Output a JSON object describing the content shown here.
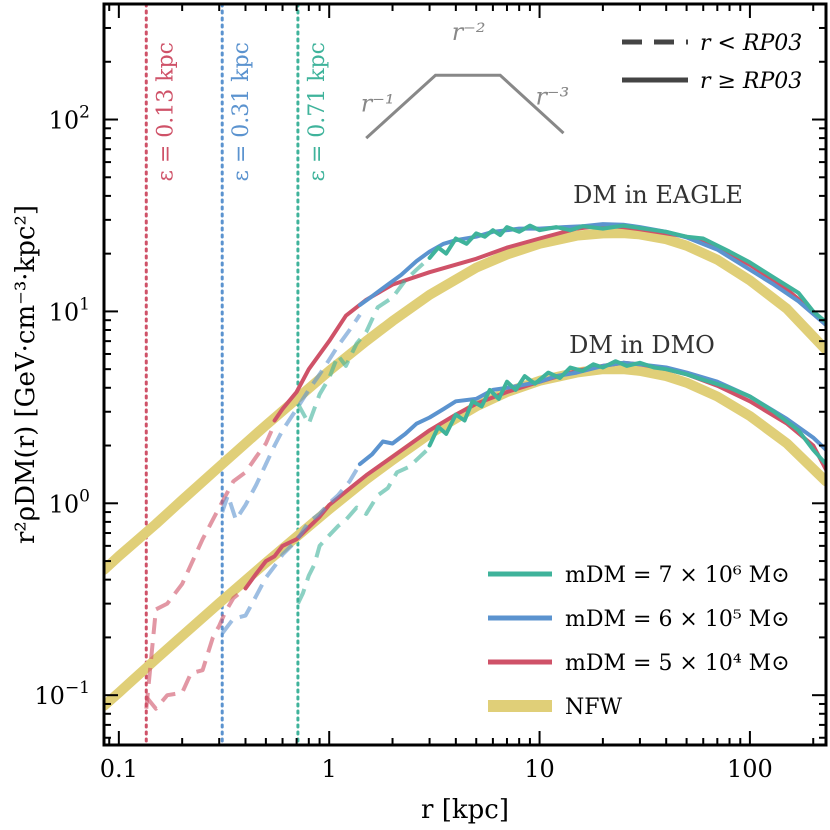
{
  "chart_data": {
    "type": "line",
    "x_scale": "log",
    "y_scale": "log",
    "xlim": [
      0.085,
      230
    ],
    "ylim": [
      0.055,
      400
    ],
    "xlabel": "r [kpc]",
    "ylabel": "r²ρDM(r) [GeV·cm⁻³·kpc²]",
    "x_ticks": [
      {
        "value": 0.1,
        "label": "0.1"
      },
      {
        "value": 1,
        "label": "1"
      },
      {
        "value": 10,
        "label": "10"
      },
      {
        "value": 100,
        "label": "100"
      }
    ],
    "y_ticks": [
      {
        "value": 0.1,
        "base": "10",
        "exp": "−1"
      },
      {
        "value": 1,
        "base": "10",
        "exp": "0"
      },
      {
        "value": 10,
        "base": "10",
        "exp": "1"
      },
      {
        "value": 100,
        "base": "10",
        "exp": "2"
      }
    ],
    "grid": false,
    "colors": {
      "green": "#3fb39b",
      "blue": "#5b93cf",
      "red": "#cf5268",
      "nfw": "#e0cf78",
      "gray": "#888888"
    },
    "annotations": {
      "eagle": "DM in EAGLE",
      "dmo": "DM in DMO"
    },
    "softening_lines": [
      {
        "x": 0.135,
        "label": "ε = 0.13 kpc",
        "color": "#cf5268"
      },
      {
        "x": 0.31,
        "label": "ε = 0.31 kpc",
        "color": "#5b93cf"
      },
      {
        "x": 0.71,
        "label": "ε = 0.71 kpc",
        "color": "#3fb39b"
      }
    ],
    "slope_guide": {
      "labels": [
        "r⁻¹",
        "r⁻²",
        "r⁻³"
      ],
      "points": [
        [
          1.5,
          80
        ],
        [
          3.2,
          170
        ],
        [
          6.5,
          170
        ],
        [
          13,
          85
        ]
      ]
    },
    "legend_style": {
      "position": "top-right",
      "entries": [
        {
          "label": "r < RP03",
          "style": "dashed"
        },
        {
          "label": "r ≥ RP03",
          "style": "solid"
        }
      ]
    },
    "legend": {
      "position": "lower-right",
      "entries": [
        {
          "label": "mDM = 7 × 10⁶ M⊙",
          "color": "#3fb39b",
          "width": 5
        },
        {
          "label": "mDM = 6 × 10⁵ M⊙",
          "color": "#5b93cf",
          "width": 5
        },
        {
          "label": "mDM = 5 × 10⁴ M⊙",
          "color": "#cf5268",
          "width": 5
        },
        {
          "label": "NFW",
          "color": "#e0cf78",
          "width": 12
        }
      ]
    },
    "series": [
      {
        "name": "NFW",
        "group": "EAGLE",
        "color": "#e0cf78",
        "width": 10,
        "style": "solid",
        "x": [
          0.085,
          0.1,
          0.15,
          0.2,
          0.3,
          0.5,
          0.7,
          1,
          1.5,
          2,
          3,
          5,
          7,
          10,
          15,
          20,
          25,
          30,
          40,
          50,
          70,
          100,
          150,
          230
        ],
        "y": [
          0.45,
          0.53,
          0.78,
          1.04,
          1.55,
          2.55,
          3.5,
          4.9,
          7.0,
          8.9,
          12.2,
          16.9,
          19.8,
          22.5,
          24.8,
          25.5,
          25.6,
          25.2,
          23.8,
          22.0,
          18.6,
          14.5,
          10.3,
          6.3
        ]
      },
      {
        "name": "NFW",
        "group": "DMO",
        "color": "#e0cf78",
        "width": 10,
        "style": "solid",
        "x": [
          0.085,
          0.1,
          0.15,
          0.2,
          0.3,
          0.5,
          0.7,
          1,
          1.5,
          2,
          3,
          5,
          7,
          10,
          15,
          20,
          25,
          30,
          40,
          50,
          70,
          100,
          150,
          230
        ],
        "y": [
          0.088,
          0.103,
          0.154,
          0.204,
          0.302,
          0.49,
          0.67,
          0.93,
          1.33,
          1.68,
          2.3,
          3.2,
          3.8,
          4.35,
          4.8,
          5.0,
          5.0,
          4.9,
          4.6,
          4.25,
          3.6,
          2.85,
          2.05,
          1.3
        ]
      },
      {
        "name": "mDM = 5 × 10⁴ M⊙",
        "group": "EAGLE",
        "color": "#cf5268",
        "width": 4,
        "style": "dashed",
        "alpha": 0.6,
        "x": [
          0.135,
          0.15,
          0.17,
          0.2,
          0.25,
          0.3,
          0.35,
          0.4,
          0.45,
          0.5,
          0.55
        ],
        "y": [
          0.085,
          0.28,
          0.3,
          0.38,
          0.65,
          0.95,
          1.3,
          1.45,
          1.75,
          2.05,
          2.6
        ]
      },
      {
        "name": "mDM = 5 × 10⁴ M⊙",
        "group": "EAGLE",
        "color": "#cf5268",
        "width": 4,
        "style": "solid",
        "x": [
          0.55,
          0.6,
          0.7,
          0.8,
          1,
          1.2,
          1.5,
          2,
          3,
          5,
          7,
          10,
          15,
          20,
          25,
          30,
          40,
          50,
          70,
          100,
          150,
          200,
          230
        ],
        "y": [
          2.7,
          3.1,
          3.8,
          5.0,
          7.0,
          9.5,
          11.5,
          13.8,
          16.0,
          18.8,
          21.5,
          24.0,
          27.0,
          28.0,
          27.5,
          26.8,
          25.5,
          24.5,
          21.5,
          17.5,
          13.0,
          10.0,
          8.5
        ]
      },
      {
        "name": "mDM = 6 × 10⁵ M⊙",
        "group": "EAGLE",
        "color": "#5b93cf",
        "width": 4,
        "style": "dashed",
        "alpha": 0.6,
        "x": [
          0.31,
          0.33,
          0.36,
          0.4,
          0.45,
          0.5,
          0.55,
          0.6,
          0.7,
          0.8,
          0.9,
          1,
          1.1,
          1.25,
          1.4
        ],
        "y": [
          0.9,
          1.1,
          0.82,
          0.98,
          1.25,
          1.6,
          2.0,
          2.4,
          3.1,
          3.9,
          4.7,
          5.6,
          6.6,
          8.0,
          9.6
        ]
      },
      {
        "name": "mDM = 6 × 10⁵ M⊙",
        "group": "EAGLE",
        "color": "#5b93cf",
        "width": 4,
        "style": "solid",
        "x": [
          1.4,
          1.6,
          1.9,
          2.2,
          2.6,
          3,
          3.5,
          4,
          5,
          6,
          7,
          8,
          10,
          13,
          16,
          20,
          25,
          30,
          40,
          50,
          70,
          100,
          130,
          170,
          230
        ],
        "y": [
          10.8,
          12.0,
          13.8,
          15.5,
          18.3,
          20.5,
          22.5,
          23.5,
          24.5,
          26.0,
          26.5,
          27.0,
          27.0,
          27.5,
          27.8,
          28.5,
          28.3,
          27.5,
          26.0,
          24.3,
          21.0,
          16.5,
          13.8,
          11.3,
          8.5
        ]
      },
      {
        "name": "mDM = 7 × 10⁶ M⊙",
        "group": "EAGLE",
        "color": "#3fb39b",
        "width": 4,
        "style": "dashed",
        "alpha": 0.6,
        "x": [
          0.71,
          0.8,
          0.9,
          1.0,
          1.1,
          1.2,
          1.35,
          1.5,
          1.7,
          2.0,
          2.3,
          2.6,
          3.0
        ],
        "y": [
          3.3,
          2.6,
          3.7,
          4.5,
          5.9,
          5.2,
          6.8,
          7.8,
          10.5,
          11.8,
          14.5,
          16.5,
          19.0
        ]
      },
      {
        "name": "mDM = 7 × 10⁶ M⊙",
        "group": "EAGLE",
        "color": "#3fb39b",
        "width": 4,
        "style": "solid",
        "x": [
          3.0,
          3.3,
          3.6,
          4.0,
          4.5,
          5,
          5.5,
          6,
          6.5,
          7,
          8,
          9,
          10,
          12,
          14,
          16,
          20,
          25,
          30,
          40,
          50,
          60,
          80,
          100,
          130,
          170,
          200,
          230
        ],
        "y": [
          19.0,
          21.5,
          20.0,
          24.0,
          22.5,
          25.5,
          24.5,
          26.5,
          25.0,
          27.5,
          26.0,
          28.0,
          26.5,
          27.5,
          26.5,
          27.8,
          27.0,
          28.0,
          27.2,
          26.0,
          24.5,
          24.0,
          20.5,
          18.0,
          15.0,
          12.5,
          10.0,
          8.8
        ]
      },
      {
        "name": "mDM = 5 × 10⁴ M⊙",
        "group": "DMO",
        "color": "#cf5268",
        "width": 4,
        "style": "dashed",
        "alpha": 0.6,
        "x": [
          0.135,
          0.15,
          0.17,
          0.2,
          0.22,
          0.25,
          0.28,
          0.3,
          0.32,
          0.35,
          0.4
        ],
        "y": [
          0.098,
          0.085,
          0.1,
          0.103,
          0.13,
          0.135,
          0.2,
          0.23,
          0.27,
          0.32,
          0.36
        ]
      },
      {
        "name": "mDM = 5 × 10⁴ M⊙",
        "group": "DMO",
        "color": "#cf5268",
        "width": 4,
        "style": "solid",
        "x": [
          0.4,
          0.45,
          0.5,
          0.55,
          0.6,
          0.7,
          0.8,
          0.9,
          1,
          1.2,
          1.5,
          2,
          3,
          4,
          5,
          7,
          10,
          15,
          20,
          25,
          30,
          40,
          50,
          70,
          100,
          150,
          200,
          230
        ],
        "y": [
          0.36,
          0.43,
          0.5,
          0.53,
          0.6,
          0.65,
          0.75,
          0.85,
          0.98,
          1.15,
          1.4,
          1.75,
          2.4,
          2.9,
          3.3,
          3.8,
          4.3,
          4.9,
          5.2,
          5.4,
          5.3,
          5.0,
          4.7,
          4.1,
          3.4,
          2.6,
          2.0,
          1.5
        ]
      },
      {
        "name": "mDM = 6 × 10⁵ M⊙",
        "group": "DMO",
        "color": "#5b93cf",
        "width": 4,
        "style": "dashed",
        "alpha": 0.6,
        "x": [
          0.31,
          0.35,
          0.4,
          0.45,
          0.5,
          0.55,
          0.6,
          0.7,
          0.8,
          0.9,
          1.0,
          1.1,
          1.25,
          1.4
        ],
        "y": [
          0.21,
          0.25,
          0.26,
          0.33,
          0.41,
          0.47,
          0.54,
          0.64,
          0.8,
          0.88,
          1.0,
          1.1,
          1.3,
          1.6
        ]
      },
      {
        "name": "mDM = 6 × 10⁵ M⊙",
        "group": "DMO",
        "color": "#5b93cf",
        "width": 4,
        "style": "solid",
        "x": [
          1.4,
          1.6,
          1.8,
          2.0,
          2.3,
          2.6,
          3,
          3.5,
          4,
          5,
          6,
          7,
          8,
          10,
          12,
          15,
          20,
          25,
          30,
          40,
          50,
          70,
          100,
          150,
          200,
          230
        ],
        "y": [
          1.6,
          1.8,
          2.1,
          2.05,
          2.3,
          2.6,
          2.8,
          3.1,
          3.4,
          3.5,
          3.9,
          4.0,
          4.1,
          4.3,
          4.6,
          4.8,
          5.2,
          5.4,
          5.3,
          5.1,
          4.8,
          4.3,
          3.6,
          2.75,
          2.2,
          1.9
        ]
      },
      {
        "name": "mDM = 7 × 10⁶ M⊙",
        "group": "DMO",
        "color": "#3fb39b",
        "width": 4,
        "style": "dashed",
        "alpha": 0.6,
        "x": [
          0.71,
          0.75,
          0.8,
          0.85,
          0.9,
          1.0,
          1.1,
          1.2,
          1.35,
          1.5,
          1.7,
          1.9,
          2.1,
          2.4,
          2.7,
          3.0
        ],
        "y": [
          0.3,
          0.34,
          0.42,
          0.48,
          0.6,
          0.68,
          0.76,
          0.82,
          0.95,
          0.88,
          1.1,
          1.2,
          1.45,
          1.55,
          1.75,
          1.95
        ]
      },
      {
        "name": "mDM = 7 × 10⁶ M⊙",
        "group": "DMO",
        "color": "#3fb39b",
        "width": 4,
        "style": "solid",
        "x": [
          3.0,
          3.3,
          3.6,
          4.0,
          4.4,
          4.8,
          5.3,
          5.8,
          6.4,
          7,
          7.7,
          8.5,
          9.5,
          11,
          12.5,
          14,
          16,
          18,
          20,
          23,
          26,
          30,
          35,
          40,
          50,
          60,
          80,
          100,
          130,
          170,
          200,
          230
        ],
        "y": [
          2.0,
          2.5,
          2.3,
          2.9,
          2.7,
          3.4,
          3.2,
          3.9,
          3.5,
          4.3,
          3.9,
          4.6,
          4.2,
          4.8,
          4.5,
          5.1,
          4.9,
          5.3,
          5.1,
          5.5,
          5.2,
          5.4,
          5.1,
          5.0,
          4.7,
          4.4,
          4.0,
          3.6,
          3.0,
          2.4,
          1.9,
          1.6
        ]
      }
    ]
  }
}
